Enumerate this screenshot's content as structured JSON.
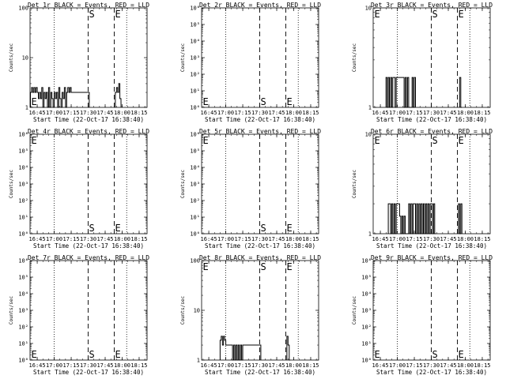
{
  "figure": {
    "background": "#ffffff",
    "ink": "#000000"
  },
  "chart_data": [
    {
      "type": "line",
      "title": "Det 1r BLACK = Events, RED = LLD",
      "xlabel": "Start Time (22-Oct-17 16:38:40)",
      "ylabel": "Counts/sec",
      "scale": "log",
      "ylim": [
        1,
        100
      ],
      "yticks": [
        "1",
        "10",
        "100"
      ],
      "xticks": [
        "16:45",
        "17:00",
        "17:15",
        "17:30",
        "17:45",
        "18:00",
        "18:15"
      ],
      "xlim": [
        "16:38:40",
        "18:22"
      ],
      "dotted_lines": [
        "17:00",
        "18:04"
      ],
      "dashed_lines": [
        "17:30",
        "17:53"
      ],
      "markers": [
        {
          "letter": "E",
          "at": "16:39",
          "level": "bottom"
        },
        {
          "letter": "S",
          "at": "17:30",
          "level": "top"
        },
        {
          "letter": "E",
          "at": "17:53",
          "level": "top"
        }
      ],
      "series": [
        {
          "name": "Events",
          "x": [
            "16:39",
            "16:40",
            "16:41",
            "16:42",
            "16:43",
            "16:44",
            "16:45",
            "16:46",
            "16:47",
            "16:48",
            "16:49",
            "16:50",
            "16:51",
            "16:52",
            "16:53",
            "16:54",
            "16:55",
            "16:56",
            "16:57",
            "16:58",
            "16:59",
            "17:00",
            "17:01",
            "17:02",
            "17:03",
            "17:04",
            "17:05",
            "17:06",
            "17:07",
            "17:08",
            "17:09",
            "17:10",
            "17:11",
            "17:12",
            "17:13",
            "17:14",
            "17:15",
            "17:20",
            "17:25",
            "17:30",
            "17:54",
            "17:55",
            "17:56",
            "17:57",
            "17:58"
          ],
          "y": [
            2,
            2.5,
            2,
            2.5,
            2,
            2.5,
            2,
            1.5,
            2,
            1.5,
            2.5,
            1,
            2,
            1.5,
            2,
            1,
            2.5,
            1,
            2,
            1.5,
            1,
            2,
            1.5,
            2,
            1,
            2.5,
            1.5,
            1,
            2,
            1.5,
            2.5,
            1,
            2,
            2.5,
            2,
            2.5,
            2,
            2,
            2,
            2,
            2,
            2.5,
            2,
            3,
            1.5
          ]
        }
      ]
    },
    {
      "type": "line",
      "title": "Det 2r BLACK = Events, RED = LLD",
      "xlabel": "Start Time (22-Oct-17 16:38:40)",
      "ylabel": "Counts/sec",
      "scale": "log",
      "ylim": [
        1,
        1000000
      ],
      "yticks": [
        "10⁰",
        "10¹",
        "10²",
        "10³",
        "10⁴",
        "10⁵",
        "10⁶"
      ],
      "xticks": [
        "16:45",
        "17:00",
        "17:15",
        "17:30",
        "17:45",
        "18:00",
        "18:15"
      ],
      "xlim": [
        "16:38:40",
        "18:22"
      ],
      "dotted_lines": [
        "17:00",
        "18:04"
      ],
      "dashed_lines": [
        "17:30",
        "17:53"
      ],
      "markers": [
        {
          "letter": "E",
          "at": "16:39",
          "level": "bottom"
        },
        {
          "letter": "S",
          "at": "17:30",
          "level": "bottom"
        },
        {
          "letter": "E",
          "at": "17:53",
          "level": "bottom"
        }
      ],
      "series": []
    },
    {
      "type": "line",
      "title": "Det 3r BLACK = Events, RED = LLD",
      "xlabel": "Start Time (22-Oct-17 16:38:40)",
      "ylabel": "Counts/sec",
      "scale": "log",
      "ylim": [
        1,
        10
      ],
      "yticks": [
        "1",
        "10"
      ],
      "xticks": [
        "16:45",
        "17:00",
        "17:15",
        "17:30",
        "17:45",
        "18:00",
        "18:15"
      ],
      "xlim": [
        "16:38:40",
        "18:22"
      ],
      "dotted_lines": [
        "17:00",
        "18:04"
      ],
      "dashed_lines": [
        "17:30",
        "17:53"
      ],
      "markers": [
        {
          "letter": "E",
          "at": "16:39",
          "level": "top"
        },
        {
          "letter": "S",
          "at": "17:30",
          "level": "top"
        },
        {
          "letter": "E",
          "at": "17:53",
          "level": "top"
        }
      ],
      "series": [
        {
          "name": "Events",
          "x": [
            "16:50",
            "16:51",
            "16:52",
            "16:53",
            "16:54",
            "16:55",
            "16:56",
            "16:57",
            "16:58",
            "16:59",
            "17:05",
            "17:06",
            "17:07",
            "17:08",
            "17:09",
            "17:10",
            "17:13",
            "17:14",
            "17:15",
            "17:55",
            "17:56"
          ],
          "y": [
            2,
            1,
            2,
            1,
            2,
            1,
            2,
            2,
            1,
            2,
            2,
            1,
            2,
            1,
            2,
            1,
            2,
            1,
            2,
            2,
            1
          ]
        }
      ]
    },
    {
      "type": "line",
      "title": "Det 4r BLACK = Events, RED = LLD",
      "xlabel": "Start Time (22-Oct-17 16:38:40)",
      "ylabel": "Counts/sec",
      "scale": "log",
      "ylim": [
        1,
        1000000
      ],
      "yticks": [
        "10⁰",
        "10¹",
        "10²",
        "10³",
        "10⁴",
        "10⁵",
        "10⁶"
      ],
      "xticks": [
        "16:45",
        "17:00",
        "17:15",
        "17:30",
        "17:45",
        "18:00",
        "18:15"
      ],
      "xlim": [
        "16:38:40",
        "18:22"
      ],
      "dotted_lines": [
        "17:00",
        "18:04"
      ],
      "dashed_lines": [
        "17:30",
        "17:53"
      ],
      "markers": [
        {
          "letter": "E",
          "at": "16:39",
          "level": "top"
        },
        {
          "letter": "S",
          "at": "17:30",
          "level": "bottom"
        },
        {
          "letter": "E",
          "at": "17:53",
          "level": "bottom"
        }
      ],
      "series": []
    },
    {
      "type": "line",
      "title": "Det 5r BLACK = Events, RED = LLD",
      "xlabel": "Start Time (22-Oct-17 16:38:40)",
      "ylabel": "Counts/sec",
      "scale": "log",
      "ylim": [
        1,
        1000000
      ],
      "yticks": [
        "10⁰",
        "10¹",
        "10²",
        "10³",
        "10⁴",
        "10⁵",
        "10⁶"
      ],
      "xticks": [
        "16:45",
        "17:00",
        "17:15",
        "17:30",
        "17:45",
        "18:00",
        "18:15"
      ],
      "xlim": [
        "16:38:40",
        "18:22"
      ],
      "dotted_lines": [
        "17:00",
        "18:04"
      ],
      "dashed_lines": [
        "17:30",
        "17:53"
      ],
      "markers": [
        {
          "letter": "E",
          "at": "16:39",
          "level": "top"
        },
        {
          "letter": "S",
          "at": "17:30",
          "level": "bottom"
        },
        {
          "letter": "E",
          "at": "17:53",
          "level": "bottom"
        }
      ],
      "series": []
    },
    {
      "type": "line",
      "title": "Det 6r BLACK = Events, RED = LLD",
      "xlabel": "Start Time (22-Oct-17 16:38:40)",
      "ylabel": "Counts/sec",
      "scale": "log",
      "ylim": [
        1,
        10
      ],
      "yticks": [
        "1",
        "10"
      ],
      "xticks": [
        "16:45",
        "17:00",
        "17:15",
        "17:30",
        "17:45",
        "18:00",
        "18:15"
      ],
      "xlim": [
        "16:38:40",
        "18:22"
      ],
      "dotted_lines": [
        "17:00",
        "18:04"
      ],
      "dashed_lines": [
        "17:30",
        "17:53"
      ],
      "markers": [
        {
          "letter": "E",
          "at": "16:39",
          "level": "top"
        },
        {
          "letter": "S",
          "at": "17:30",
          "level": "top"
        },
        {
          "letter": "E",
          "at": "17:53",
          "level": "top"
        }
      ],
      "series": [
        {
          "name": "Events",
          "x": [
            "16:52",
            "16:53",
            "16:54",
            "16:55",
            "16:56",
            "16:57",
            "16:58",
            "16:59",
            "17:02",
            "17:03",
            "17:04",
            "17:05",
            "17:06",
            "17:07",
            "17:10",
            "17:11",
            "17:12",
            "17:13",
            "17:14",
            "17:15",
            "17:16",
            "17:17",
            "17:18",
            "17:19",
            "17:20",
            "17:21",
            "17:22",
            "17:23",
            "17:24",
            "17:25",
            "17:26",
            "17:27",
            "17:28",
            "17:29",
            "17:30",
            "17:31",
            "17:32",
            "17:33",
            "17:54",
            "17:55",
            "17:56"
          ],
          "y": [
            2,
            2,
            1,
            2,
            1,
            2,
            1,
            2,
            1.5,
            1,
            1.5,
            1,
            1.5,
            1,
            2,
            1,
            2,
            1,
            2,
            2,
            1,
            2,
            1,
            2,
            1,
            2,
            1,
            2,
            1,
            2,
            1,
            2,
            1,
            2,
            2,
            1,
            2,
            1,
            2,
            1,
            2
          ]
        }
      ]
    },
    {
      "type": "line",
      "title": "Det 7r BLACK = Events, RED = LLD",
      "xlabel": "Start Time (22-Oct-17 16:38:40)",
      "ylabel": "Counts/sec",
      "scale": "log",
      "ylim": [
        1,
        1000000
      ],
      "yticks": [
        "10⁰",
        "10¹",
        "10²",
        "10³",
        "10⁴",
        "10⁵",
        "10⁶"
      ],
      "xticks": [
        "16:45",
        "17:00",
        "17:15",
        "17:30",
        "17:45",
        "18:00",
        "18:15"
      ],
      "xlim": [
        "16:38:40",
        "18:22"
      ],
      "dotted_lines": [
        "17:00",
        "18:04"
      ],
      "dashed_lines": [
        "17:30",
        "17:53"
      ],
      "markers": [
        {
          "letter": "E",
          "at": "16:39",
          "level": "bottom"
        },
        {
          "letter": "S",
          "at": "17:30",
          "level": "bottom"
        },
        {
          "letter": "E",
          "at": "17:53",
          "level": "bottom"
        }
      ],
      "series": []
    },
    {
      "type": "line",
      "title": "Det 8r BLACK = Events, RED = LLD",
      "xlabel": "Start Time (22-Oct-17 16:38:40)",
      "ylabel": "Counts/sec",
      "scale": "log",
      "ylim": [
        1,
        100
      ],
      "yticks": [
        "1",
        "10",
        "100"
      ],
      "xticks": [
        "16:45",
        "17:00",
        "17:15",
        "17:30",
        "17:45",
        "18:00",
        "18:15"
      ],
      "xlim": [
        "16:38:40",
        "18:22"
      ],
      "dotted_lines": [
        "17:00",
        "18:04"
      ],
      "dashed_lines": [
        "17:30",
        "17:53"
      ],
      "markers": [
        {
          "letter": "E",
          "at": "16:39",
          "level": "top"
        },
        {
          "letter": "S",
          "at": "17:30",
          "level": "top"
        },
        {
          "letter": "E",
          "at": "17:53",
          "level": "top"
        }
      ],
      "series": [
        {
          "name": "Events",
          "x": [
            "16:55",
            "16:56",
            "16:57",
            "16:58",
            "16:59",
            "17:00",
            "17:05",
            "17:06",
            "17:07",
            "17:08",
            "17:09",
            "17:10",
            "17:11",
            "17:12",
            "17:13",
            "17:14",
            "17:15",
            "17:20",
            "17:25",
            "17:30",
            "17:54",
            "17:55",
            "17:56"
          ],
          "y": [
            2.5,
            3,
            2,
            3,
            2.5,
            2,
            2,
            1,
            2,
            1,
            2,
            1,
            2,
            1,
            2,
            1,
            2,
            2,
            2,
            2,
            3,
            2,
            1
          ]
        }
      ]
    },
    {
      "type": "line",
      "title": "Det 9r BLACK = Events, RED = LLD",
      "xlabel": "Start Time (22-Oct-17 16:38:40)",
      "ylabel": "Counts/sec",
      "scale": "log",
      "ylim": [
        1,
        1000000
      ],
      "yticks": [
        "10⁰",
        "10¹",
        "10²",
        "10³",
        "10⁴",
        "10⁵",
        "10⁶"
      ],
      "xticks": [
        "16:45",
        "17:00",
        "17:15",
        "17:30",
        "17:45",
        "18:00",
        "18:15"
      ],
      "xlim": [
        "16:38:40",
        "18:22"
      ],
      "dotted_lines": [
        "17:00",
        "18:04"
      ],
      "dashed_lines": [
        "17:30",
        "17:53"
      ],
      "markers": [
        {
          "letter": "E",
          "at": "16:39",
          "level": "bottom"
        },
        {
          "letter": "S",
          "at": "17:30",
          "level": "bottom"
        },
        {
          "letter": "E",
          "at": "17:53",
          "level": "bottom"
        }
      ],
      "series": []
    }
  ]
}
